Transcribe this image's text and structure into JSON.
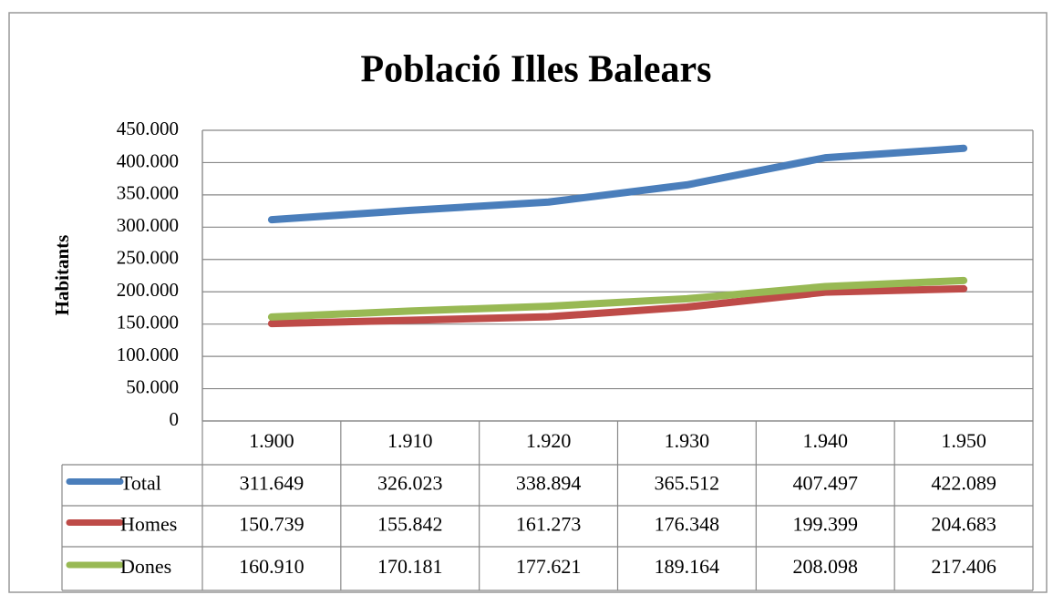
{
  "chart_data": {
    "type": "line",
    "title": "Població Illes Balears",
    "y_label": "Habitants",
    "categories": [
      "1.900",
      "1.910",
      "1.920",
      "1.930",
      "1.940",
      "1.950"
    ],
    "series": [
      {
        "name": "Total",
        "color": "#4a7ebb",
        "values": [
          311649,
          326023,
          338894,
          365512,
          407497,
          422089
        ],
        "value_labels": [
          "311.649",
          "326.023",
          "338.894",
          "365.512",
          "407.497",
          "422.089"
        ]
      },
      {
        "name": "Homes",
        "color": "#be4b48",
        "values": [
          150739,
          155842,
          161273,
          176348,
          199399,
          204683
        ],
        "value_labels": [
          "150.739",
          "155.842",
          "161.273",
          "176.348",
          "199.399",
          "204.683"
        ]
      },
      {
        "name": "Dones",
        "color": "#98b954",
        "values": [
          160910,
          170181,
          177621,
          189164,
          208098,
          217406
        ],
        "value_labels": [
          "160.910",
          "170.181",
          "177.621",
          "189.164",
          "208.098",
          "217.406"
        ]
      }
    ],
    "ylim": [
      0,
      450000
    ],
    "yticks": [
      0,
      {
        "value": 50000,
        "label": "50.000"
      },
      {
        "value": 100000,
        "label": "100.000"
      },
      {
        "value": 150000,
        "label": "150.000"
      },
      {
        "value": 200000,
        "label": "200.000"
      },
      {
        "value": 250000,
        "label": "250.000"
      },
      {
        "value": 300000,
        "label": "300.000"
      },
      {
        "value": 350000,
        "label": "350.000"
      },
      {
        "value": 400000,
        "label": "400.000"
      },
      {
        "value": 450000,
        "label": "450.000"
      }
    ],
    "grid": true
  }
}
